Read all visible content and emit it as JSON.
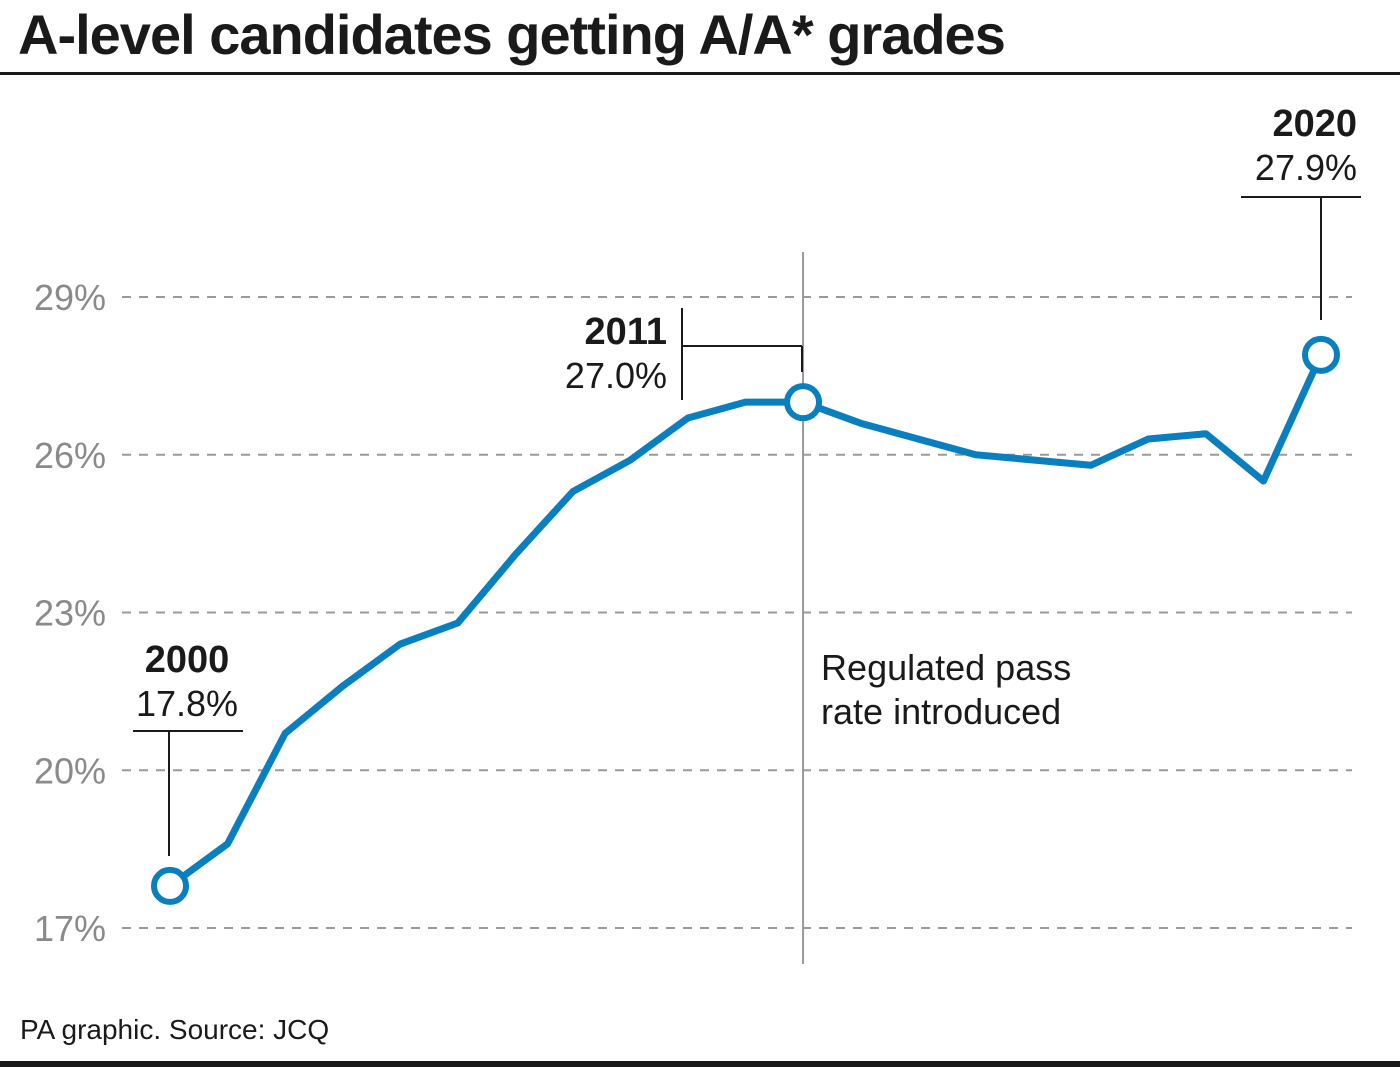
{
  "title": "A-level candidates getting A/A* grades",
  "source": "PA graphic. Source: JCQ",
  "colors": {
    "line": "#0a7fc0",
    "grid": "#9a9a9a",
    "marker": "#1a1a1a",
    "tick": "#8a8a8a"
  },
  "chart_data": {
    "type": "line",
    "title": "A-level candidates getting A/A* grades",
    "xlabel": "",
    "ylabel": "",
    "x": [
      2000,
      2001,
      2002,
      2003,
      2004,
      2005,
      2006,
      2007,
      2008,
      2009,
      2010,
      2011,
      2012,
      2013,
      2014,
      2015,
      2016,
      2017,
      2018,
      2019,
      2020
    ],
    "series": [
      {
        "values": [
          17.8,
          18.6,
          20.7,
          21.6,
          22.4,
          22.8,
          24.1,
          25.3,
          25.9,
          26.7,
          27.0,
          27.0,
          26.6,
          26.3,
          26.0,
          25.9,
          25.8,
          26.3,
          26.4,
          25.5,
          27.9
        ]
      }
    ],
    "ylim": [
      17,
      29
    ],
    "yticks": [
      17,
      20,
      23,
      26,
      29
    ],
    "ytick_labels": [
      "17%",
      "20%",
      "23%",
      "26%",
      "29%"
    ],
    "grid": true,
    "grid_style": "dashed",
    "annotations": [
      {
        "x": 2000,
        "year": "2000",
        "value": "17.8%",
        "y": 17.8
      },
      {
        "x": 2011,
        "year": "2011",
        "value": "27.0%",
        "y": 27.0
      },
      {
        "x": 2020,
        "year": "2020",
        "value": "27.9%",
        "y": 27.9
      }
    ],
    "reference_line": {
      "x": 2011,
      "label_lines": [
        "Regulated pass",
        "rate introduced"
      ]
    }
  }
}
